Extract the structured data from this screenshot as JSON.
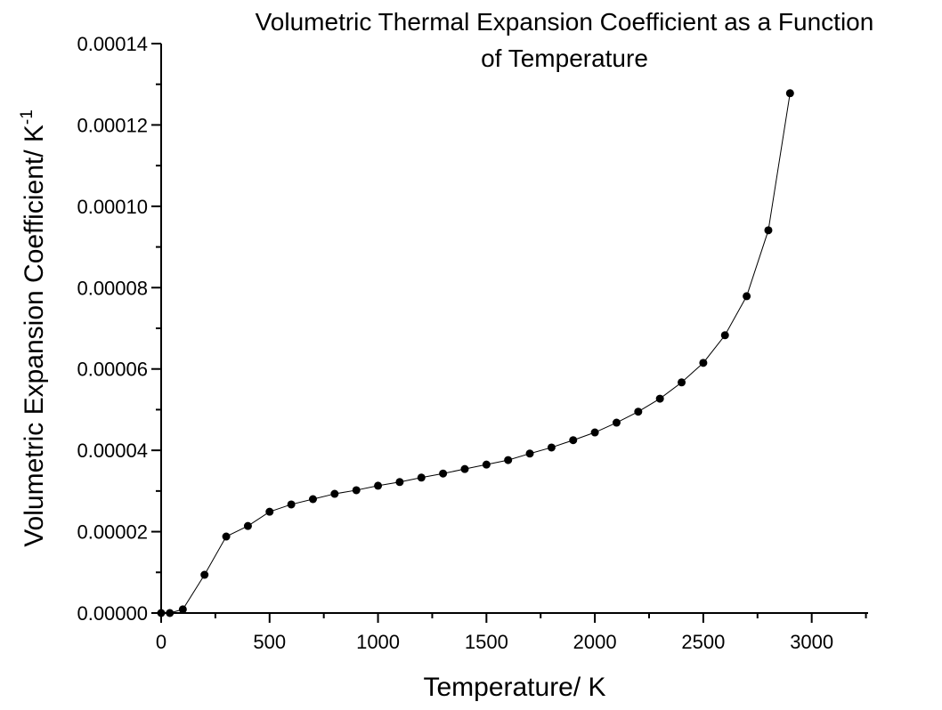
{
  "chart_data": {
    "type": "line",
    "title_lines": [
      "Volumetric Thermal Expansion Coefficient as a Function",
      "of Temperature"
    ],
    "xlabel": "Temperature/ K",
    "ylabel": "Volumetric Expansion Coefficient/ K",
    "ylabel_superscript": "-1",
    "xlim": [
      0,
      3260
    ],
    "ylim": [
      0,
      0.00014
    ],
    "x_ticks": [
      "0",
      "500",
      "1000",
      "1500",
      "2000",
      "2500",
      "3000"
    ],
    "y_ticks": [
      "0.00000",
      "0.00002",
      "0.00004",
      "0.00006",
      "0.00008",
      "0.00010",
      "0.00012",
      "0.00014"
    ],
    "grid": false,
    "series": [
      {
        "name": "Volumetric expansion coefficient",
        "color": "#000000",
        "x": [
          0,
          40,
          100,
          200,
          300,
          400,
          500,
          600,
          700,
          800,
          900,
          1000,
          1100,
          1200,
          1300,
          1400,
          1500,
          1600,
          1700,
          1800,
          1900,
          2000,
          2100,
          2200,
          2300,
          2400,
          2500,
          2600,
          2700,
          2800,
          2900
        ],
        "y": [
          0,
          0,
          9e-07,
          9.4e-06,
          1.88e-05,
          2.14e-05,
          2.49e-05,
          2.67e-05,
          2.8e-05,
          2.93e-05,
          3.02e-05,
          3.13e-05,
          3.22e-05,
          3.33e-05,
          3.43e-05,
          3.54e-05,
          3.65e-05,
          3.76e-05,
          3.92e-05,
          4.07e-05,
          4.25e-05,
          4.44e-05,
          4.68e-05,
          4.95e-05,
          5.27e-05,
          5.67e-05,
          6.15e-05,
          6.83e-05,
          7.79e-05,
          9.41e-05,
          0.0001278
        ]
      }
    ]
  }
}
